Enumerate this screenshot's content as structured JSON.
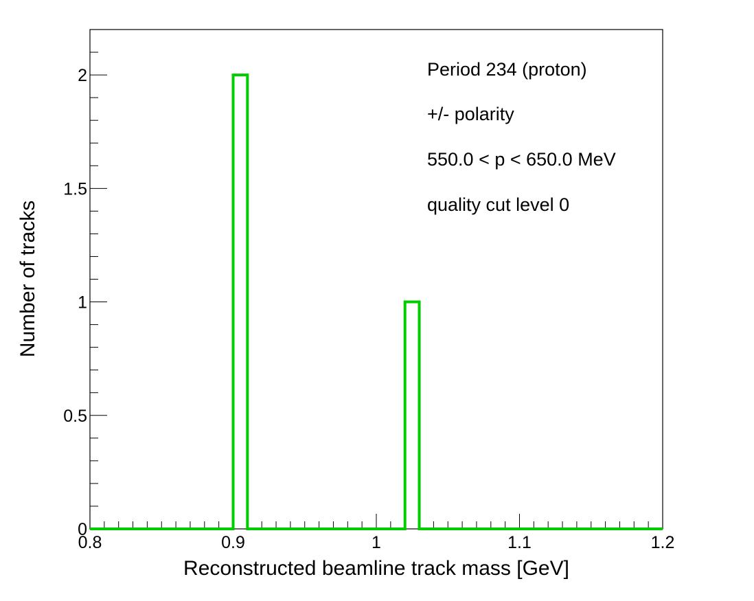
{
  "chart_data": {
    "type": "histogram",
    "xlabel": "Reconstructed beamline track mass [GeV]",
    "ylabel": "Number of tracks",
    "xlim": [
      0.8,
      1.2
    ],
    "ylim": [
      0,
      2.2
    ],
    "x_ticks": [
      "0.8",
      "0.9",
      "1",
      "1.1",
      "1.2"
    ],
    "y_ticks": [
      "0",
      "0.5",
      "1",
      "1.5",
      "2"
    ],
    "bins": [
      {
        "x_low": 0.8,
        "x_high": 0.9,
        "count": 0
      },
      {
        "x_low": 0.9,
        "x_high": 0.91,
        "count": 2
      },
      {
        "x_low": 0.91,
        "x_high": 1.02,
        "count": 0
      },
      {
        "x_low": 1.02,
        "x_high": 1.03,
        "count": 1
      },
      {
        "x_low": 1.03,
        "x_high": 1.2,
        "count": 0
      }
    ],
    "annotations": [
      "Period 234 (proton)",
      "+/- polarity",
      "550.0 < p < 650.0 MeV",
      "quality cut level 0"
    ],
    "line_color": "#00cc00",
    "grid": false,
    "legend": "none"
  }
}
